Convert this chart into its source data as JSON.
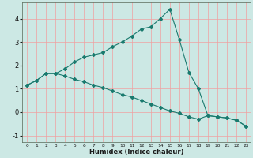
{
  "xlabel": "Humidex (Indice chaleur)",
  "background_color": "#cce8e4",
  "grid_color": "#f0a0a0",
  "line_color": "#1a7a6e",
  "x": [
    0,
    1,
    2,
    3,
    4,
    5,
    6,
    7,
    8,
    9,
    10,
    11,
    12,
    13,
    14,
    15,
    16,
    17,
    18,
    19,
    20,
    21,
    22,
    23
  ],
  "line1": [
    1.15,
    1.35,
    1.65,
    1.65,
    1.85,
    2.15,
    2.35,
    2.45,
    2.55,
    2.8,
    3.0,
    3.25,
    3.55,
    3.65,
    4.0,
    4.4,
    3.1,
    1.7,
    1.0,
    -0.15,
    -0.2,
    -0.25,
    -0.35,
    -0.6
  ],
  "line2": [
    1.15,
    1.35,
    1.65,
    1.65,
    1.55,
    1.4,
    1.3,
    1.15,
    1.05,
    0.9,
    0.75,
    0.65,
    0.5,
    0.35,
    0.2,
    0.05,
    -0.05,
    -0.2,
    -0.3,
    -0.15,
    -0.2,
    -0.25,
    -0.35,
    -0.6
  ],
  "ylim": [
    -1.3,
    4.7
  ],
  "xlim": [
    -0.5,
    23.5
  ],
  "yticks": [
    -1,
    0,
    1,
    2,
    3,
    4
  ],
  "xticks": [
    0,
    1,
    2,
    3,
    4,
    5,
    6,
    7,
    8,
    9,
    10,
    11,
    12,
    13,
    14,
    15,
    16,
    17,
    18,
    19,
    20,
    21,
    22,
    23
  ],
  "xlabel_fontsize": 6.0,
  "xtick_fontsize": 4.5,
  "ytick_fontsize": 6.0,
  "linewidth": 0.8,
  "markersize": 2.0
}
